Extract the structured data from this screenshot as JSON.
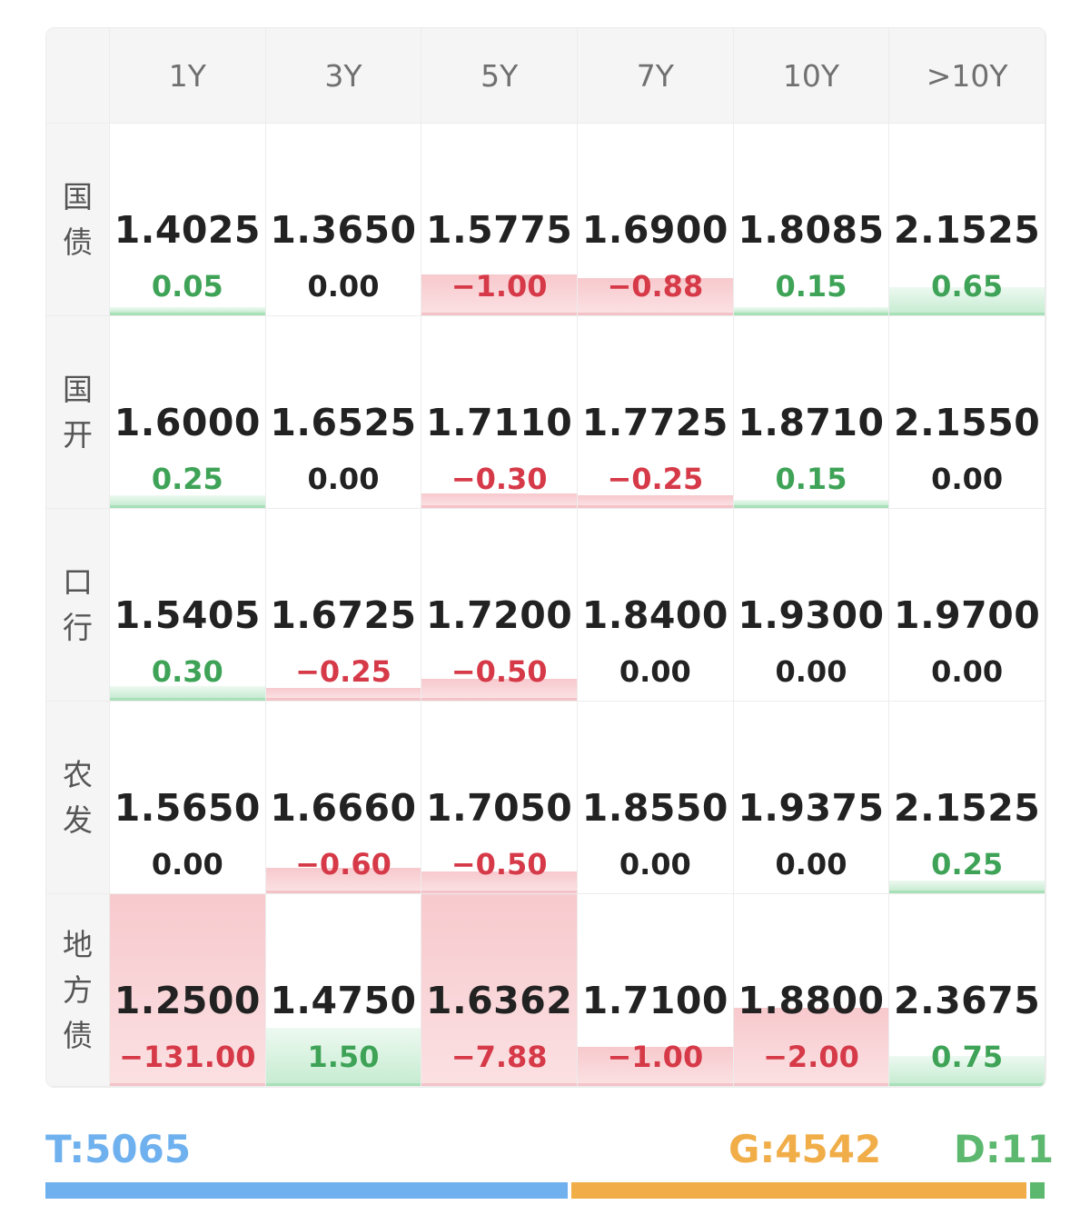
{
  "columns": [
    "1Y",
    "3Y",
    "5Y",
    "7Y",
    "10Y",
    ">10Y"
  ],
  "rows": [
    {
      "label": "国债",
      "cells": [
        {
          "value": "1.4025",
          "change": "0.05",
          "dir": "pos",
          "level": 0.02
        },
        {
          "value": "1.3650",
          "change": "0.00",
          "dir": "zero",
          "level": 0
        },
        {
          "value": "1.5775",
          "change": "−1.00",
          "dir": "neg",
          "level": 0.2
        },
        {
          "value": "1.6900",
          "change": "−0.88",
          "dir": "neg",
          "level": 0.18
        },
        {
          "value": "1.8085",
          "change": "0.15",
          "dir": "pos",
          "level": 0.03
        },
        {
          "value": "2.1525",
          "change": "0.65",
          "dir": "pos",
          "level": 0.13
        }
      ]
    },
    {
      "label": "国开",
      "cells": [
        {
          "value": "1.6000",
          "change": "0.25",
          "dir": "pos",
          "level": 0.05
        },
        {
          "value": "1.6525",
          "change": "0.00",
          "dir": "zero",
          "level": 0
        },
        {
          "value": "1.7110",
          "change": "−0.30",
          "dir": "neg",
          "level": 0.06
        },
        {
          "value": "1.7725",
          "change": "−0.25",
          "dir": "neg",
          "level": 0.05
        },
        {
          "value": "1.8710",
          "change": "0.15",
          "dir": "pos",
          "level": 0.03
        },
        {
          "value": "2.1550",
          "change": "0.00",
          "dir": "zero",
          "level": 0
        }
      ]
    },
    {
      "label": "口行",
      "cells": [
        {
          "value": "1.5405",
          "change": "0.30",
          "dir": "pos",
          "level": 0.06
        },
        {
          "value": "1.6725",
          "change": "−0.25",
          "dir": "neg",
          "level": 0.05
        },
        {
          "value": "1.7200",
          "change": "−0.50",
          "dir": "neg",
          "level": 0.1
        },
        {
          "value": "1.8400",
          "change": "0.00",
          "dir": "zero",
          "level": 0
        },
        {
          "value": "1.9300",
          "change": "0.00",
          "dir": "zero",
          "level": 0
        },
        {
          "value": "1.9700",
          "change": "0.00",
          "dir": "zero",
          "level": 0
        }
      ]
    },
    {
      "label": "农发",
      "cells": [
        {
          "value": "1.5650",
          "change": "0.00",
          "dir": "zero",
          "level": 0
        },
        {
          "value": "1.6660",
          "change": "−0.60",
          "dir": "neg",
          "level": 0.12
        },
        {
          "value": "1.7050",
          "change": "−0.50",
          "dir": "neg",
          "level": 0.1
        },
        {
          "value": "1.8550",
          "change": "0.00",
          "dir": "zero",
          "level": 0
        },
        {
          "value": "1.9375",
          "change": "0.00",
          "dir": "zero",
          "level": 0
        },
        {
          "value": "2.1525",
          "change": "0.25",
          "dir": "pos",
          "level": 0.05
        }
      ]
    },
    {
      "label": "地方债",
      "cells": [
        {
          "value": "1.2500",
          "change": "−131.00",
          "dir": "neg",
          "level": 1.0
        },
        {
          "value": "1.4750",
          "change": "1.50",
          "dir": "pos",
          "level": 0.29
        },
        {
          "value": "1.6362",
          "change": "−7.88",
          "dir": "neg",
          "level": 1.0
        },
        {
          "value": "1.7100",
          "change": "−1.00",
          "dir": "neg",
          "level": 0.19
        },
        {
          "value": "1.8800",
          "change": "−2.00",
          "dir": "neg",
          "level": 0.39
        },
        {
          "value": "2.3675",
          "change": "0.75",
          "dir": "pos",
          "level": 0.14
        }
      ]
    }
  ],
  "footer": {
    "t_label": "T:5065",
    "g_label": "G:4542",
    "d_label": "D:11",
    "t_count": 5065,
    "g_count": 4542,
    "d_count": 11,
    "colors": {
      "t": "#6fb1ee",
      "g": "#f0ad48",
      "d": "#5cb86f"
    }
  },
  "colors": {
    "positive": "#3ea357",
    "negative": "#d63a48",
    "neutral": "#222222"
  }
}
